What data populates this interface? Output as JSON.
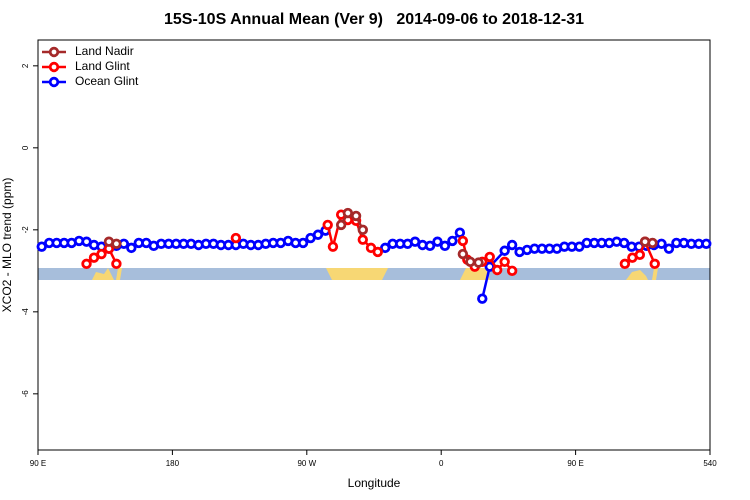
{
  "chart_data": {
    "type": "line",
    "title": "15S-10S Annual Mean (Ver 9)   2014-09-06 to 2018-12-31",
    "x_label": "Longitude",
    "y_label": "XCO2 - MLO trend (ppm)",
    "xlim": [
      90,
      540
    ],
    "ylim": [
      -7.37,
      2.63
    ],
    "xticks": [
      {
        "value": 90,
        "label": "90 E"
      },
      180,
      {
        "value": 270,
        "label": "90 W"
      },
      {
        "value": 360,
        "label": "0"
      },
      {
        "value": 450,
        "label": "90 E"
      },
      540
    ],
    "yticks": [
      2,
      0,
      -2,
      -4,
      -6
    ],
    "legend": "top-left",
    "series": [
      {
        "name": "Land Nadir",
        "color": "#a52a2a",
        "x": [
          137.5,
          142.5,
          200,
          293,
          297.5,
          303,
          307.5,
          340,
          374.5,
          379.5,
          385,
          440,
          496.5,
          501.5
        ],
        "values": [
          -2.29,
          -2.34,
          null,
          -1.88,
          -1.59,
          -1.66,
          -2.0,
          null,
          -2.59,
          -2.78,
          -2.8,
          null,
          -2.29,
          -2.32
        ]
      },
      {
        "name": "Land Glint",
        "color": "#ff0000",
        "x": [
          122.5,
          127.5,
          132.5,
          137.5,
          142.5,
          180,
          222.5,
          250,
          284,
          287.5,
          293,
          297.5,
          303,
          307.5,
          313,
          317.5,
          345,
          374.5,
          377.5,
          382.5,
          387.5,
          392.5,
          397.5,
          402.5,
          407.5,
          440,
          483,
          488,
          493,
          496.5,
          503
        ],
        "values": [
          -2.83,
          -2.68,
          -2.59,
          -2.46,
          -2.83,
          null,
          -2.2,
          null,
          -1.88,
          -2.41,
          -1.63,
          -1.76,
          -1.78,
          -2.24,
          -2.44,
          -2.54,
          null,
          -2.27,
          -2.73,
          -2.9,
          -2.78,
          -2.66,
          -2.98,
          -2.78,
          -3.0,
          null,
          -2.83,
          -2.68,
          -2.61,
          -2.29,
          -2.83
        ]
      },
      {
        "name": "Ocean Glint",
        "color": "#0000ff",
        "x": [
          92.5,
          97.5,
          102.5,
          107.5,
          112.5,
          117.5,
          122.5,
          127.5,
          132.5,
          137.5,
          142.5,
          147.5,
          152.5,
          157.5,
          162.5,
          167.5,
          172.5,
          177.5,
          182.5,
          187.5,
          192.5,
          197.5,
          202.5,
          207.5,
          212.5,
          217.5,
          222.5,
          227.5,
          232.5,
          237.5,
          242.5,
          247.5,
          252.5,
          257.5,
          262.5,
          267.5,
          272.5,
          277.5,
          282.5,
          302.5,
          322.5,
          327.5,
          332.5,
          337.5,
          342.5,
          347.5,
          352.5,
          357.5,
          362.5,
          367.5,
          372.5,
          380,
          387.5,
          392.5,
          402.5,
          407.5,
          412.5,
          417.5,
          422.5,
          427.5,
          432.5,
          437.5,
          442.5,
          447.5,
          452.5,
          457.5,
          462.5,
          467.5,
          472.5,
          477.5,
          482.5,
          487.5,
          492.5,
          497.5,
          502.5,
          507.5,
          512.5,
          517.5,
          522.5,
          527.5,
          532.5,
          537.5
        ],
        "values": [
          -2.41,
          -2.32,
          -2.32,
          -2.32,
          -2.32,
          -2.27,
          -2.29,
          -2.37,
          -2.41,
          -2.46,
          -2.39,
          -2.34,
          -2.44,
          -2.32,
          -2.32,
          -2.39,
          -2.34,
          -2.34,
          -2.34,
          -2.34,
          -2.34,
          -2.37,
          -2.34,
          -2.34,
          -2.37,
          -2.37,
          -2.37,
          -2.34,
          -2.37,
          -2.37,
          -2.34,
          -2.32,
          -2.32,
          -2.27,
          -2.32,
          -2.32,
          -2.2,
          -2.12,
          -2.02,
          null,
          -2.44,
          -2.34,
          -2.34,
          -2.34,
          -2.29,
          -2.37,
          -2.39,
          -2.29,
          -2.39,
          -2.27,
          -2.07,
          null,
          -3.68,
          -2.9,
          -2.51,
          -2.37,
          -2.54,
          -2.49,
          -2.46,
          -2.46,
          -2.46,
          -2.46,
          -2.41,
          -2.41,
          -2.41,
          -2.32,
          -2.32,
          -2.32,
          -2.32,
          -2.29,
          -2.32,
          -2.41,
          -2.41,
          -2.39,
          -2.37,
          -2.34,
          -2.46,
          -2.32,
          -2.32,
          -2.34,
          -2.34,
          -2.34
        ]
      }
    ]
  }
}
